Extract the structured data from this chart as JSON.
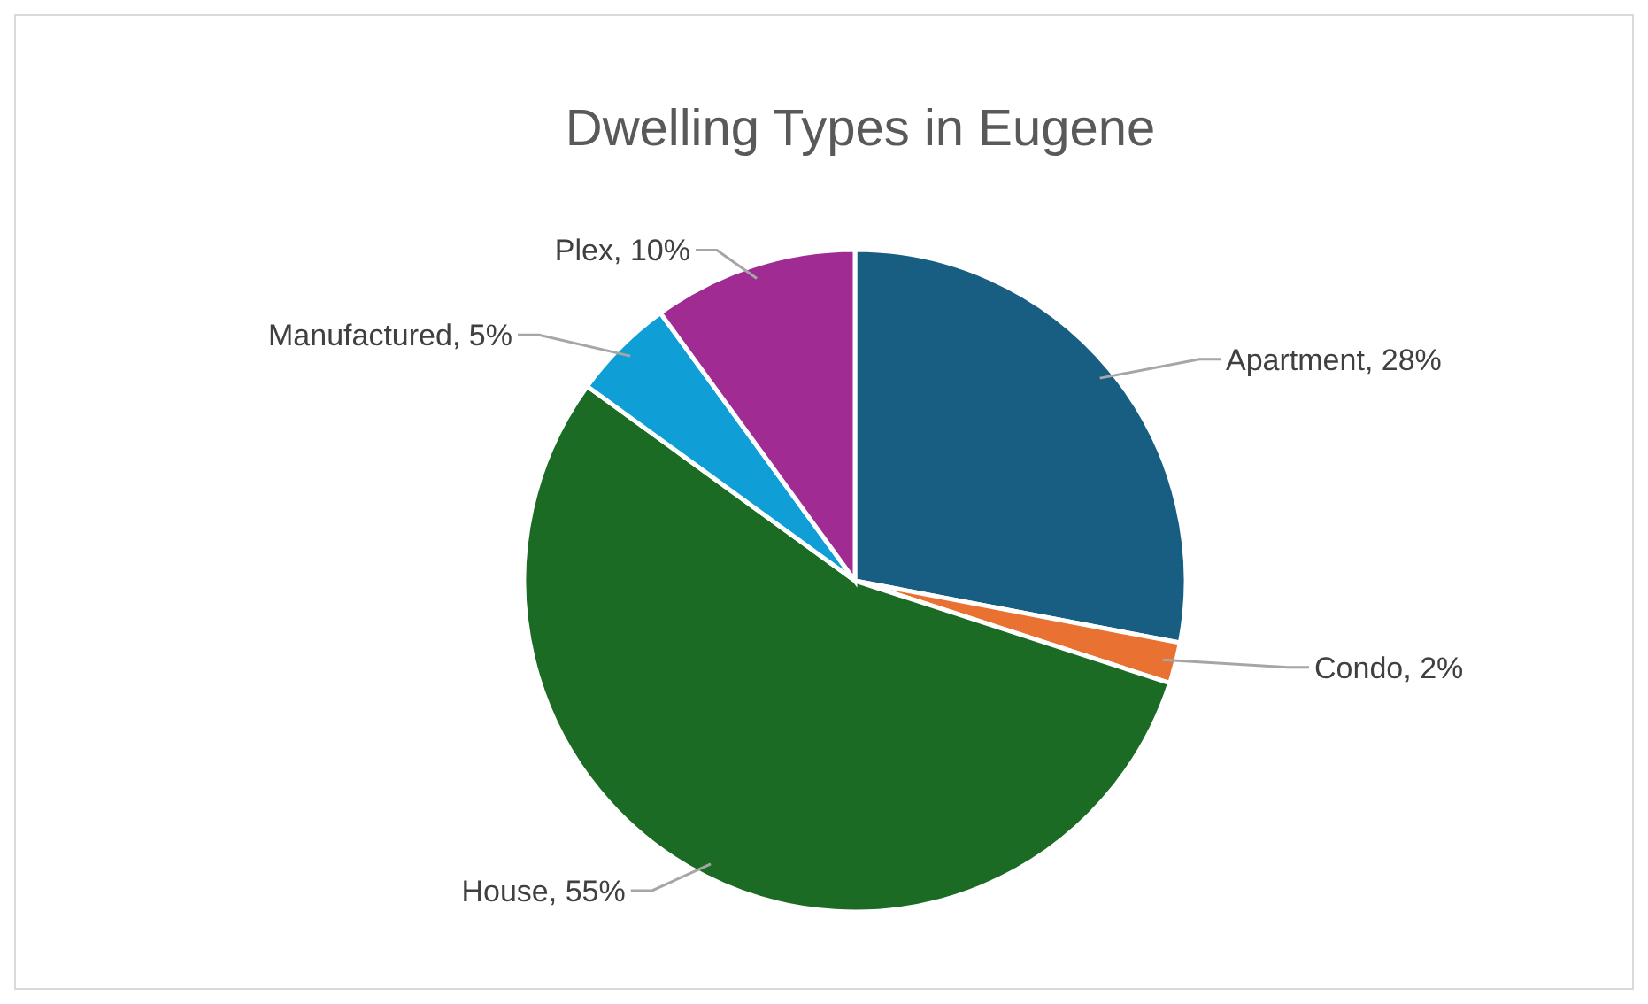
{
  "chart_data": {
    "type": "pie",
    "title": "Dwelling Types in Eugene",
    "categories": [
      "Apartment",
      "Condo",
      "House",
      "Manufactured",
      "Plex"
    ],
    "values": [
      28,
      2,
      55,
      5,
      10
    ],
    "colors": [
      "#175e82",
      "#e97132",
      "#1c6b24",
      "#0f9ed5",
      "#a02b93"
    ],
    "value_labels": [
      ", 28%",
      ", 2%",
      ", 55%",
      ", 5%",
      ", 10%"
    ]
  }
}
